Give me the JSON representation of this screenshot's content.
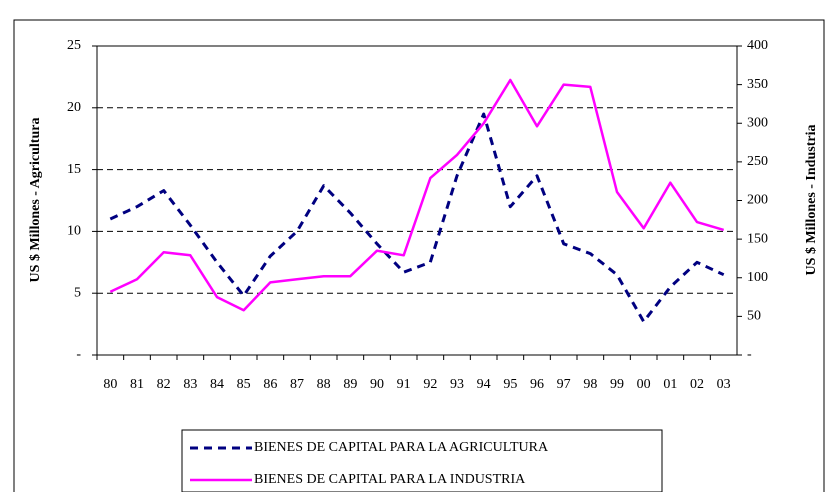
{
  "chart_data": {
    "type": "line",
    "y_label": "US $ Millones - Agricultura",
    "y2_label": "US $ Millones - Industria",
    "categories": [
      "80",
      "81",
      "82",
      "83",
      "84",
      "85",
      "86",
      "87",
      "88",
      "89",
      "90",
      "91",
      "92",
      "93",
      "94",
      "95",
      "96",
      "97",
      "98",
      "99",
      "00",
      "01",
      "02",
      "03"
    ],
    "series": [
      {
        "name": "BIENES DE CAPITAL PARA LA AGRICULTURA",
        "color": "#000080",
        "dash": true,
        "values": [
          11,
          12,
          13.3,
          10.5,
          7.5,
          4.8,
          8,
          10,
          13.7,
          11.5,
          9,
          6.7,
          7.5,
          14.5,
          19.5,
          12,
          14.5,
          9,
          8.2,
          6.5,
          2.7,
          5.5,
          7.5,
          6.5
        ]
      },
      {
        "name": "BIENES DE CAPITAL PARA LA INDUSTRIA",
        "color": "#ff00ff",
        "axis": "y2",
        "values": [
          82,
          98,
          133,
          129,
          75,
          58,
          94,
          98,
          102,
          102,
          135,
          129,
          229,
          259,
          300,
          356,
          296,
          350,
          347,
          211,
          164,
          223,
          172,
          162
        ]
      }
    ],
    "ylim": [
      0,
      25
    ],
    "yticks": [
      {
        "value": 0,
        "label": "-"
      },
      5,
      10,
      15,
      20,
      25
    ],
    "y2lim": [
      0,
      400
    ],
    "y2ticks": [
      {
        "value": 0,
        "label": "-"
      },
      50,
      100,
      150,
      200,
      250,
      300,
      350,
      400
    ],
    "grid": true,
    "legend": "bottom"
  }
}
